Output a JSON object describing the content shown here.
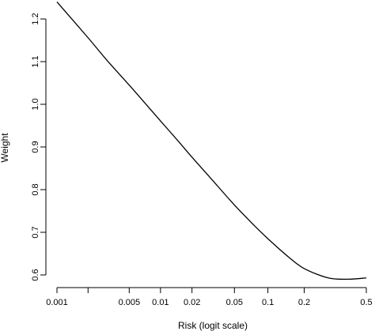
{
  "chart_data": {
    "type": "line",
    "title": "",
    "xlabel": "Risk (logit scale)",
    "ylabel": "Weight",
    "x_scale": "logit",
    "xlim": [
      0.001,
      0.5
    ],
    "ylim": [
      0.6,
      1.2
    ],
    "x_ticks": [
      0.001,
      0.002,
      0.005,
      0.01,
      0.02,
      0.05,
      0.1,
      0.2,
      0.5
    ],
    "x_tick_labels": [
      "0.001",
      "",
      "0.005",
      "0.01",
      "0.02",
      "0.05",
      "0.1",
      "0.2",
      "0.5"
    ],
    "y_ticks": [
      0.6,
      0.7,
      0.8,
      0.9,
      1.0,
      1.1,
      1.2
    ],
    "y_tick_labels": [
      "0.6",
      "0.7",
      "0.8",
      "0.9",
      "1.0",
      "1.1",
      "1.2"
    ],
    "grid": false,
    "legend": "none",
    "line_color": "#000000",
    "x": [
      0.001,
      0.002,
      0.003,
      0.005,
      0.0075,
      0.01,
      0.015,
      0.02,
      0.03,
      0.05,
      0.075,
      0.1,
      0.15,
      0.2,
      0.3,
      0.4,
      0.5
    ],
    "y": [
      1.24,
      1.156,
      1.105,
      1.045,
      0.996,
      0.961,
      0.912,
      0.876,
      0.827,
      0.764,
      0.717,
      0.685,
      0.642,
      0.615,
      0.593,
      0.59,
      0.593
    ]
  }
}
